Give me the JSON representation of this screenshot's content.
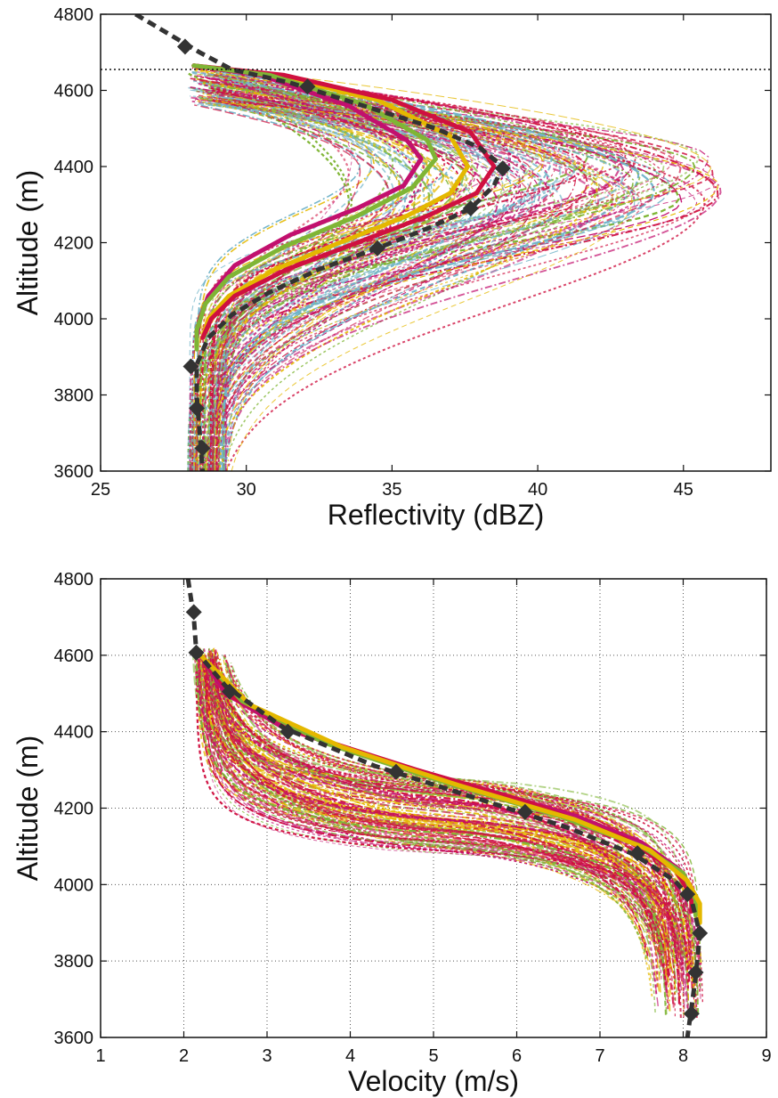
{
  "chart_data": [
    {
      "type": "line",
      "xlabel": "Reflectivity (dBZ)",
      "ylabel": "Altitude (m)",
      "xlim": [
        25,
        48
      ],
      "ylim": [
        3600,
        4800
      ],
      "xticks": [
        "25",
        "30",
        "35",
        "40",
        "45"
      ],
      "yticks": [
        "3600",
        "3800",
        "4000",
        "4200",
        "4400",
        "4600",
        "4800"
      ],
      "grid": false,
      "reference_line": {
        "style": "dotted",
        "y": 4655
      },
      "observed": {
        "style": "dashed-black-with-diamonds",
        "curve": [
          [
            26.2,
            4800
          ],
          [
            28.4,
            4700
          ],
          [
            29.5,
            4655
          ],
          [
            31.5,
            4620
          ],
          [
            34,
            4560
          ],
          [
            36.5,
            4500
          ],
          [
            38,
            4450
          ],
          [
            38.8,
            4400
          ],
          [
            38.5,
            4350
          ],
          [
            37.7,
            4290
          ],
          [
            36.3,
            4240
          ],
          [
            34.5,
            4185
          ],
          [
            32.5,
            4130
          ],
          [
            30.8,
            4070
          ],
          [
            29.5,
            4010
          ],
          [
            28.7,
            3950
          ],
          [
            28.3,
            3880
          ],
          [
            28.3,
            3800
          ],
          [
            28.4,
            3700
          ],
          [
            28.5,
            3600
          ]
        ],
        "markers": [
          [
            27.9,
            4715
          ],
          [
            32.1,
            4610
          ],
          [
            38.8,
            4395
          ],
          [
            37.7,
            4290
          ],
          [
            34.5,
            4185
          ],
          [
            28.1,
            3875
          ],
          [
            28.3,
            3765
          ],
          [
            28.5,
            3660
          ]
        ]
      },
      "best_fits": [
        {
          "color": "#e4b800",
          "points": [
            [
              28.2,
              4665
            ],
            [
              31,
              4640
            ],
            [
              34.5,
              4575
            ],
            [
              37,
              4480
            ],
            [
              37.6,
              4400
            ],
            [
              37,
              4330
            ],
            [
              35.5,
              4270
            ],
            [
              33.2,
              4200
            ],
            [
              31,
              4130
            ],
            [
              29.4,
              4060
            ],
            [
              28.7,
              4000
            ],
            [
              28.5,
              3950
            ]
          ]
        },
        {
          "color": "#cf1040",
          "points": [
            [
              28.2,
              4665
            ],
            [
              31.3,
              4640
            ],
            [
              35,
              4575
            ],
            [
              37.7,
              4490
            ],
            [
              38.5,
              4400
            ],
            [
              37.9,
              4330
            ],
            [
              36.2,
              4270
            ],
            [
              33.8,
              4200
            ],
            [
              31.4,
              4130
            ],
            [
              29.6,
              4060
            ],
            [
              28.8,
              4000
            ],
            [
              28.5,
              3950
            ]
          ]
        },
        {
          "color": "#c2106e",
          "points": [
            [
              28.2,
              4665
            ],
            [
              30.5,
              4640
            ],
            [
              33.5,
              4560
            ],
            [
              35.5,
              4470
            ],
            [
              36,
              4420
            ],
            [
              35.4,
              4350
            ],
            [
              33.8,
              4290
            ],
            [
              31.5,
              4220
            ],
            [
              29.6,
              4140
            ],
            [
              28.7,
              4060
            ],
            [
              28.4,
              4000
            ],
            [
              28.3,
              3950
            ]
          ]
        },
        {
          "color": "#7fb535",
          "points": [
            [
              28.2,
              4665
            ],
            [
              30.8,
              4640
            ],
            [
              34,
              4565
            ],
            [
              36.2,
              4470
            ],
            [
              36.5,
              4420
            ],
            [
              35.7,
              4345
            ],
            [
              33.8,
              4270
            ],
            [
              31.3,
              4190
            ],
            [
              29.4,
              4110
            ],
            [
              28.6,
              4040
            ],
            [
              28.3,
              3970
            ],
            [
              28.3,
              3920
            ]
          ]
        }
      ],
      "ensemble_colors": [
        "#7fb535",
        "#cf1040",
        "#6fb3c8",
        "#e4b800",
        "#c2106e"
      ]
    },
    {
      "type": "line",
      "xlabel": "Velocity (m/s)",
      "ylabel": "Altitude (m)",
      "xlim": [
        1,
        9
      ],
      "ylim": [
        3600,
        4800
      ],
      "xticks": [
        "1",
        "2",
        "3",
        "4",
        "5",
        "6",
        "7",
        "8",
        "9"
      ],
      "yticks": [
        "3600",
        "3800",
        "4000",
        "4200",
        "4400",
        "4600",
        "4800"
      ],
      "grid": true,
      "observed": {
        "style": "dashed-black-with-diamonds",
        "curve": [
          [
            2.05,
            4800
          ],
          [
            2.12,
            4700
          ],
          [
            2.15,
            4610
          ],
          [
            2.5,
            4520
          ],
          [
            3.2,
            4410
          ],
          [
            4.3,
            4310
          ],
          [
            5.6,
            4220
          ],
          [
            6.6,
            4150
          ],
          [
            7.4,
            4080
          ],
          [
            7.9,
            4010
          ],
          [
            8.1,
            3960
          ],
          [
            8.2,
            3870
          ],
          [
            8.15,
            3760
          ],
          [
            8.1,
            3680
          ],
          [
            8.05,
            3600
          ]
        ],
        "markers": [
          [
            2.12,
            4713
          ],
          [
            2.15,
            4607
          ],
          [
            2.55,
            4505
          ],
          [
            3.25,
            4400
          ],
          [
            4.55,
            4295
          ],
          [
            6.1,
            4190
          ],
          [
            7.45,
            4082
          ],
          [
            8.05,
            3975
          ],
          [
            8.2,
            3873
          ],
          [
            8.15,
            3770
          ],
          [
            8.1,
            3662
          ]
        ]
      },
      "best_fits": [
        {
          "color": "#c2106e",
          "points": [
            [
              2.2,
              4600
            ],
            [
              2.5,
              4500
            ],
            [
              3.2,
              4410
            ],
            [
              4.3,
              4330
            ],
            [
              5.6,
              4250
            ],
            [
              6.7,
              4180
            ],
            [
              7.5,
              4110
            ],
            [
              7.95,
              4040
            ],
            [
              8.1,
              3980
            ],
            [
              8.1,
              3940
            ]
          ]
        },
        {
          "color": "#cf1040",
          "points": [
            [
              2.2,
              4600
            ],
            [
              2.6,
              4490
            ],
            [
              3.5,
              4390
            ],
            [
              4.8,
              4300
            ],
            [
              6.2,
              4210
            ],
            [
              7.3,
              4120
            ],
            [
              7.9,
              4040
            ],
            [
              8.1,
              3970
            ],
            [
              8.1,
              3930
            ]
          ]
        },
        {
          "color": "#7fb535",
          "points": [
            [
              2.2,
              4600
            ],
            [
              2.7,
              4480
            ],
            [
              3.7,
              4370
            ],
            [
              5.1,
              4270
            ],
            [
              6.5,
              4180
            ],
            [
              7.5,
              4100
            ],
            [
              8.0,
              4030
            ],
            [
              8.15,
              3960
            ],
            [
              8.15,
              3920
            ]
          ]
        },
        {
          "color": "#e4b800",
          "points": [
            [
              2.2,
              4600
            ],
            [
              2.8,
              4470
            ],
            [
              3.9,
              4360
            ],
            [
              5.3,
              4260
            ],
            [
              6.7,
              4170
            ],
            [
              7.6,
              4090
            ],
            [
              8.05,
              4010
            ],
            [
              8.2,
              3950
            ],
            [
              8.2,
              3900
            ]
          ]
        }
      ],
      "ensemble_colors": [
        "#7fb535",
        "#cf1040",
        "#e4b800",
        "#c2106e"
      ]
    }
  ]
}
